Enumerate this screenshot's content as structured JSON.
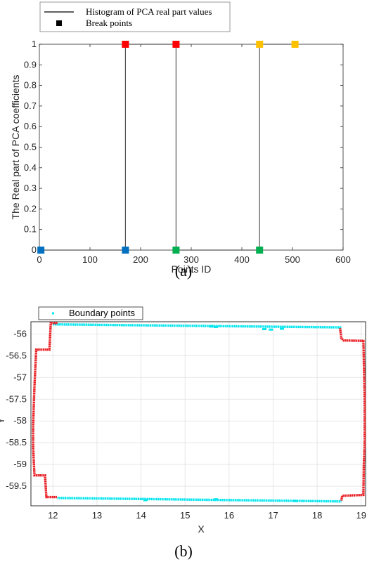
{
  "chart_data": [
    {
      "type": "line",
      "panel_caption": "(a)",
      "xlabel": "Points ID",
      "ylabel": "The Real part of PCA coefficients",
      "xlim": [
        0,
        600
      ],
      "ylim": [
        0,
        1
      ],
      "xticks": [
        "0",
        "100",
        "200",
        "300",
        "400",
        "500",
        "600"
      ],
      "yticks": [
        "0",
        "0.1",
        "0.2",
        "0.3",
        "0.4",
        "0.5",
        "0.6",
        "0.7",
        "0.8",
        "0.9",
        "1"
      ],
      "grid": false,
      "legend_position": "top-left",
      "series": [
        {
          "name": "Histogram of PCA real part values",
          "color": "#000000",
          "x": [
            0,
            170,
            170,
            270,
            270,
            435,
            435,
            505
          ],
          "y": [
            0,
            0,
            1,
            1,
            0,
            0,
            1,
            1
          ]
        }
      ],
      "break_points": {
        "name": "Break points",
        "legend_color": "#000000",
        "points": [
          {
            "x": 3,
            "y": 0,
            "color": "#0070c0"
          },
          {
            "x": 170,
            "y": 0,
            "color": "#0070c0"
          },
          {
            "x": 170,
            "y": 1,
            "color": "#ff0000"
          },
          {
            "x": 270,
            "y": 1,
            "color": "#ff0000"
          },
          {
            "x": 270,
            "y": 0,
            "color": "#00b050"
          },
          {
            "x": 435,
            "y": 0,
            "color": "#00b050"
          },
          {
            "x": 435,
            "y": 1,
            "color": "#ffc000"
          },
          {
            "x": 505,
            "y": 1,
            "color": "#ffc000"
          }
        ]
      }
    },
    {
      "type": "scatter",
      "panel_caption": "(b)",
      "xlabel": "X",
      "ylabel": "Y",
      "xlim": [
        11.5,
        19.1
      ],
      "ylim": [
        -59.95,
        -55.72
      ],
      "xticks": [
        "12",
        "13",
        "14",
        "15",
        "16",
        "17",
        "18",
        "19"
      ],
      "yticks": [
        "-56",
        "-56.5",
        "-57",
        "-57.5",
        "-58",
        "-58.5",
        "-59",
        "-59.5"
      ],
      "grid": true,
      "legend_position": "top-left",
      "series": [
        {
          "name": "Boundary points",
          "color": "#00e5ee",
          "segments": [
            {
              "x": [
                12.0,
                18.55
              ],
              "y": [
                -55.78,
                -55.85
              ]
            },
            {
              "x": [
                12.1,
                18.55
              ],
              "y": [
                -59.77,
                -59.85
              ]
            }
          ],
          "bumps": [
            {
              "x": 15.6,
              "y": -55.83
            },
            {
              "x": 15.7,
              "y": -55.84
            },
            {
              "x": 16.8,
              "y": -55.89
            },
            {
              "x": 16.95,
              "y": -55.9
            },
            {
              "x": 17.2,
              "y": -55.88
            },
            {
              "x": 14.1,
              "y": -59.82
            },
            {
              "x": 15.7,
              "y": -59.8
            },
            {
              "x": 17.5,
              "y": -59.84
            }
          ]
        },
        {
          "color": "#e8191f",
          "polylines": [
            {
              "x": [
                12.1,
                11.95,
                11.92,
                11.62,
                11.58,
                11.55,
                11.55,
                11.58,
                11.6,
                11.82,
                11.85,
                12.1
              ],
              "y": [
                -55.75,
                -55.75,
                -56.36,
                -56.36,
                -57.2,
                -58.1,
                -58.6,
                -59.25,
                -59.25,
                -59.25,
                -59.75,
                -59.75
              ]
            },
            {
              "x": [
                18.52,
                18.55,
                18.6,
                19.05,
                19.08,
                19.08,
                19.06,
                19.05,
                18.57,
                18.55
              ],
              "y": [
                -55.87,
                -56.1,
                -56.15,
                -56.16,
                -57.5,
                -58.5,
                -59.0,
                -59.7,
                -59.72,
                -59.83
              ]
            }
          ]
        }
      ]
    }
  ]
}
